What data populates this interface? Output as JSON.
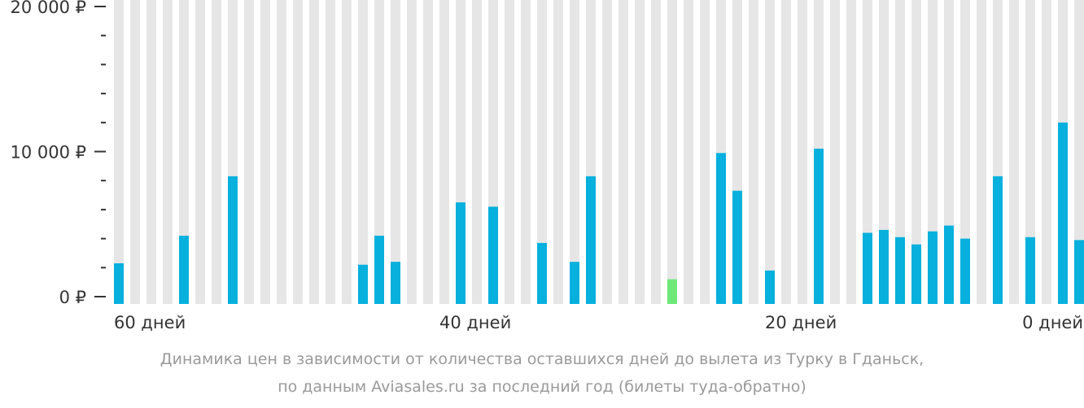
{
  "chart_data": {
    "type": "bar",
    "caption": [
      "Динамика цен в зависимости от количества оставшихся дней до вылета из Турку в Гданьск,",
      "по данным Aviasales.ru за последний год (билеты туда-обратно)"
    ],
    "x_days": [
      60,
      59,
      58,
      57,
      56,
      55,
      54,
      53,
      52,
      51,
      50,
      49,
      48,
      47,
      46,
      45,
      44,
      43,
      42,
      41,
      40,
      39,
      38,
      37,
      36,
      35,
      34,
      33,
      32,
      31,
      30,
      29,
      28,
      27,
      26,
      25,
      24,
      23,
      22,
      21,
      20,
      19,
      18,
      17,
      16,
      15,
      14,
      13,
      12,
      11,
      10,
      9,
      8,
      7,
      6,
      5,
      4,
      3,
      2,
      1,
      0
    ],
    "values": [
      2300,
      null,
      null,
      null,
      4200,
      null,
      null,
      8300,
      null,
      null,
      null,
      null,
      null,
      null,
      null,
      2200,
      4200,
      2400,
      null,
      null,
      null,
      6500,
      null,
      6200,
      null,
      null,
      3700,
      null,
      2400,
      8300,
      null,
      null,
      null,
      null,
      1200,
      null,
      null,
      9900,
      7300,
      null,
      1800,
      null,
      null,
      10200,
      null,
      null,
      4400,
      4600,
      4100,
      3600,
      4500,
      4900,
      4000,
      null,
      8300,
      null,
      4100,
      null,
      12000,
      3900,
      null
    ],
    "lowest_index": 34,
    "x_tick_labels": [
      {
        "day": 60,
        "label": "60 дней"
      },
      {
        "day": 40,
        "label": "40 дней"
      },
      {
        "day": 20,
        "label": "20 дней"
      },
      {
        "day": 0,
        "label": "0 дней"
      }
    ],
    "y_tick_labels": [
      {
        "value": 0,
        "label": "0 ₽"
      },
      {
        "value": 10000,
        "label": "10 000 ₽"
      },
      {
        "value": 20000,
        "label": "20 000 ₽"
      }
    ],
    "y_minor_ticks": [
      2000,
      4000,
      6000,
      8000,
      12000,
      14000,
      16000,
      18000
    ],
    "ylim": [
      0,
      20000
    ],
    "colors": {
      "bar": "#07b0dd",
      "lowest": "#6ee87a",
      "background_column": "#e6e6e6",
      "axis": "#333333",
      "caption": "#9a9a9a"
    }
  }
}
